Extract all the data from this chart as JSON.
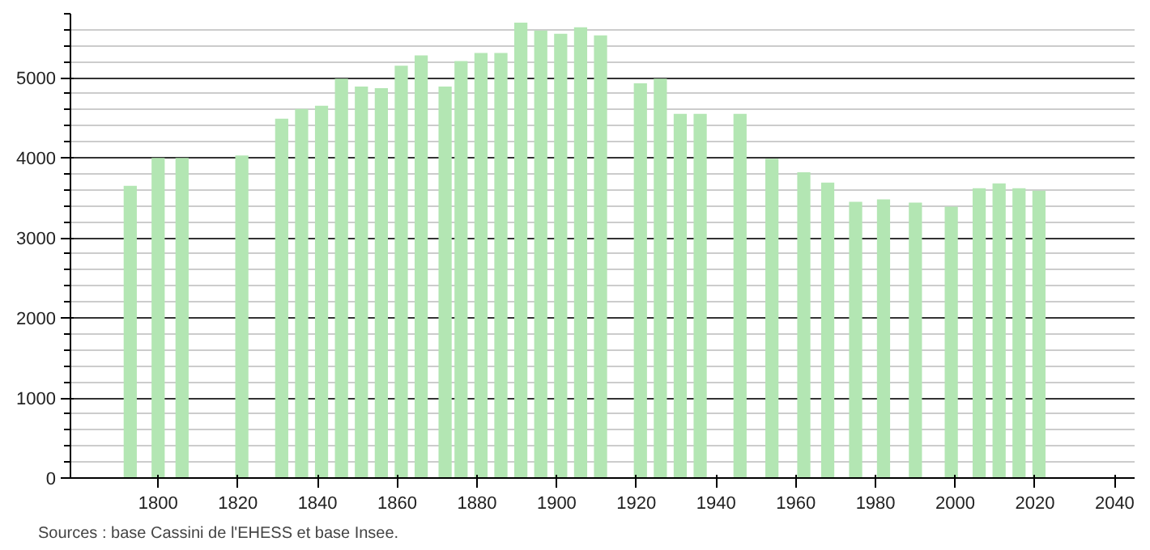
{
  "chart_data": {
    "type": "bar",
    "x": [
      1793,
      1800,
      1806,
      1821,
      1831,
      1836,
      1841,
      1846,
      1851,
      1856,
      1861,
      1866,
      1872,
      1876,
      1881,
      1886,
      1891,
      1896,
      1901,
      1906,
      1911,
      1921,
      1926,
      1931,
      1936,
      1946,
      1954,
      1962,
      1968,
      1975,
      1982,
      1990,
      1999,
      2006,
      2011,
      2016,
      2021
    ],
    "values": [
      3650,
      4000,
      4000,
      4030,
      4490,
      4610,
      4650,
      4990,
      4890,
      4870,
      5150,
      5280,
      4890,
      5210,
      5310,
      5310,
      5690,
      5590,
      5550,
      5630,
      5530,
      4930,
      4990,
      4550,
      4550,
      4550,
      3990,
      3820,
      3690,
      3450,
      3480,
      3440,
      3390,
      3620,
      3680,
      3620,
      3590
    ],
    "color": "#b3e6b3",
    "xlim": [
      1778,
      2045
    ],
    "xticks": [
      1800,
      1820,
      1840,
      1860,
      1880,
      1900,
      1920,
      1940,
      1960,
      1980,
      2000,
      2020,
      2040
    ],
    "ylim": [
      0,
      5800
    ],
    "yticks": [
      0,
      1000,
      2000,
      3000,
      4000,
      5000
    ],
    "grid": "y",
    "annotations": [
      "Sources : base Cassini de l'EHESS et base Insee."
    ]
  }
}
